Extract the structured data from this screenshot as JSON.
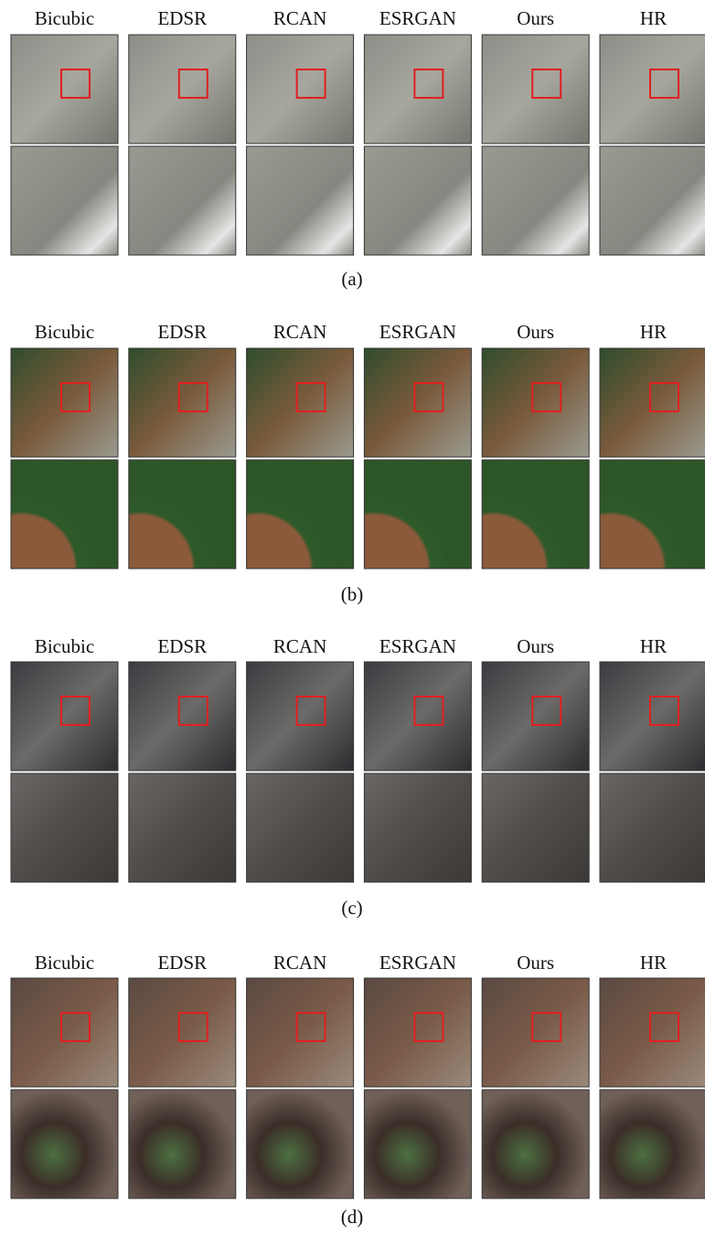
{
  "figure": {
    "groups": [
      {
        "columns": [
          "Bicubic",
          "EDSR",
          "RCAN",
          "ESRGAN",
          "Ours",
          "HR"
        ],
        "caption": "(a)"
      },
      {
        "columns": [
          "Bicubic",
          "EDSR",
          "RCAN",
          "ESRGAN",
          "Ours",
          "HR"
        ],
        "caption": "(b)"
      },
      {
        "columns": [
          "Bicubic",
          "EDSR",
          "RCAN",
          "ESRGAN",
          "Ours",
          "HR"
        ],
        "caption": "(c)"
      },
      {
        "columns": [
          "Bicubic",
          "EDSR",
          "RCAN",
          "ESRGAN",
          "Ours",
          "HR"
        ],
        "caption": "(d)"
      }
    ]
  }
}
